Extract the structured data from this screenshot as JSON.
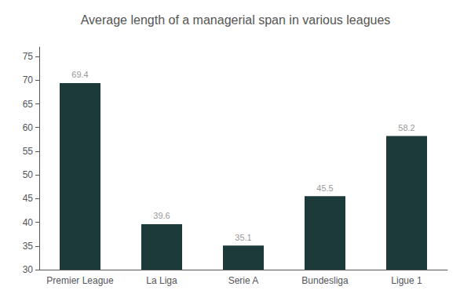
{
  "chart_data": {
    "type": "bar",
    "title": "Average length of a managerial span in various leagues",
    "categories": [
      "Premier League",
      "La Liga",
      "Serie A",
      "Bundesliga",
      "Ligue 1"
    ],
    "values": [
      69.4,
      39.6,
      35.1,
      45.5,
      58.2
    ],
    "color": "#1c3a3a",
    "ylim": [
      30,
      77
    ],
    "yticks": [
      30,
      35,
      40,
      45,
      50,
      55,
      60,
      65,
      70,
      75
    ],
    "grid": false,
    "data_labels": true
  }
}
